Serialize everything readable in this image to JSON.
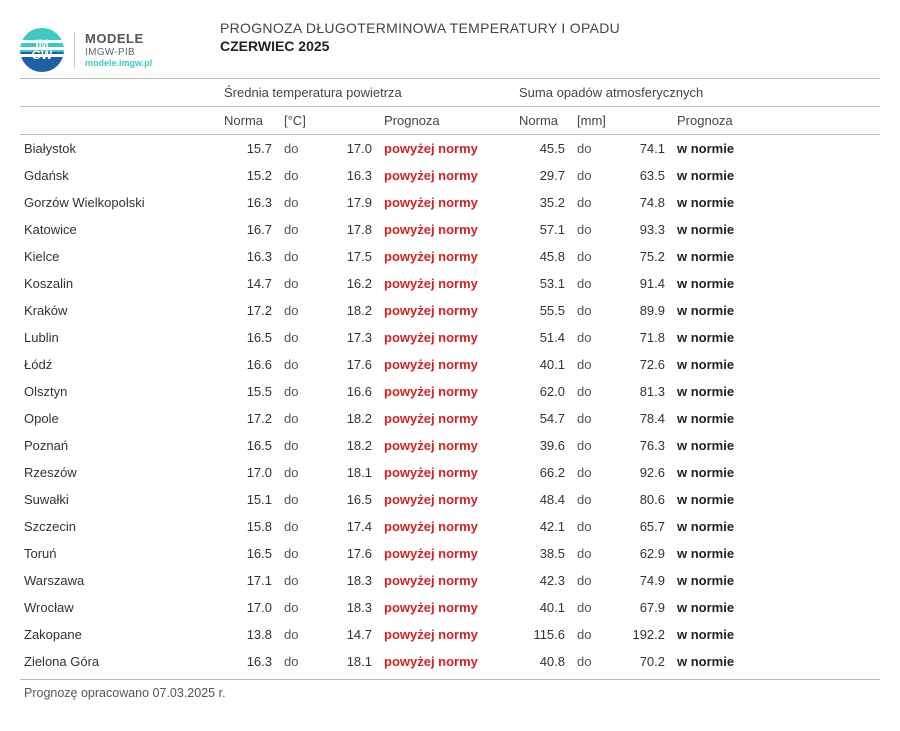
{
  "logo": {
    "top": "IM",
    "bottom": "GW"
  },
  "brand": {
    "line1": "MODELE",
    "line2": "IMGW-PIB",
    "line3": "modele.imgw.pl"
  },
  "title": {
    "line1": "PROGNOZA DŁUGOTERMINOWA TEMPERATURY I OPADU",
    "line2": "CZERWIEC 2025"
  },
  "section_headers": {
    "temp": "Średnia temperatura powietrza",
    "precip": "Suma opadów atmosferycznych"
  },
  "col_headers": {
    "norma": "Norma",
    "temp_unit": "[°C]",
    "precip_unit": "[mm]",
    "prognoza": "Prognoza"
  },
  "range_word": "do",
  "forecast_labels": {
    "above": "powyżej normy",
    "normal": "w normie"
  },
  "colors": {
    "above": "#d22222",
    "normal": "#222222",
    "rule": "#bbbbbb",
    "teal": "#3ec9c4",
    "blue": "#1f5fa5"
  },
  "footer": "Prognozę opracowano 07.03.2025 r.",
  "rows": [
    {
      "city": "Białystok",
      "t_low": "15.7",
      "t_high": "17.0",
      "t_prog": "above",
      "p_low": "45.5",
      "p_high": "74.1",
      "p_prog": "normal"
    },
    {
      "city": "Gdańsk",
      "t_low": "15.2",
      "t_high": "16.3",
      "t_prog": "above",
      "p_low": "29.7",
      "p_high": "63.5",
      "p_prog": "normal"
    },
    {
      "city": "Gorzów Wielkopolski",
      "t_low": "16.3",
      "t_high": "17.9",
      "t_prog": "above",
      "p_low": "35.2",
      "p_high": "74.8",
      "p_prog": "normal"
    },
    {
      "city": "Katowice",
      "t_low": "16.7",
      "t_high": "17.8",
      "t_prog": "above",
      "p_low": "57.1",
      "p_high": "93.3",
      "p_prog": "normal"
    },
    {
      "city": "Kielce",
      "t_low": "16.3",
      "t_high": "17.5",
      "t_prog": "above",
      "p_low": "45.8",
      "p_high": "75.2",
      "p_prog": "normal"
    },
    {
      "city": "Koszalin",
      "t_low": "14.7",
      "t_high": "16.2",
      "t_prog": "above",
      "p_low": "53.1",
      "p_high": "91.4",
      "p_prog": "normal"
    },
    {
      "city": "Kraków",
      "t_low": "17.2",
      "t_high": "18.2",
      "t_prog": "above",
      "p_low": "55.5",
      "p_high": "89.9",
      "p_prog": "normal"
    },
    {
      "city": "Lublin",
      "t_low": "16.5",
      "t_high": "17.3",
      "t_prog": "above",
      "p_low": "51.4",
      "p_high": "71.8",
      "p_prog": "normal"
    },
    {
      "city": "Łódź",
      "t_low": "16.6",
      "t_high": "17.6",
      "t_prog": "above",
      "p_low": "40.1",
      "p_high": "72.6",
      "p_prog": "normal"
    },
    {
      "city": "Olsztyn",
      "t_low": "15.5",
      "t_high": "16.6",
      "t_prog": "above",
      "p_low": "62.0",
      "p_high": "81.3",
      "p_prog": "normal"
    },
    {
      "city": "Opole",
      "t_low": "17.2",
      "t_high": "18.2",
      "t_prog": "above",
      "p_low": "54.7",
      "p_high": "78.4",
      "p_prog": "normal"
    },
    {
      "city": "Poznań",
      "t_low": "16.5",
      "t_high": "18.2",
      "t_prog": "above",
      "p_low": "39.6",
      "p_high": "76.3",
      "p_prog": "normal"
    },
    {
      "city": "Rzeszów",
      "t_low": "17.0",
      "t_high": "18.1",
      "t_prog": "above",
      "p_low": "66.2",
      "p_high": "92.6",
      "p_prog": "normal"
    },
    {
      "city": "Suwałki",
      "t_low": "15.1",
      "t_high": "16.5",
      "t_prog": "above",
      "p_low": "48.4",
      "p_high": "80.6",
      "p_prog": "normal"
    },
    {
      "city": "Szczecin",
      "t_low": "15.8",
      "t_high": "17.4",
      "t_prog": "above",
      "p_low": "42.1",
      "p_high": "65.7",
      "p_prog": "normal"
    },
    {
      "city": "Toruń",
      "t_low": "16.5",
      "t_high": "17.6",
      "t_prog": "above",
      "p_low": "38.5",
      "p_high": "62.9",
      "p_prog": "normal"
    },
    {
      "city": "Warszawa",
      "t_low": "17.1",
      "t_high": "18.3",
      "t_prog": "above",
      "p_low": "42.3",
      "p_high": "74.9",
      "p_prog": "normal"
    },
    {
      "city": "Wrocław",
      "t_low": "17.0",
      "t_high": "18.3",
      "t_prog": "above",
      "p_low": "40.1",
      "p_high": "67.9",
      "p_prog": "normal"
    },
    {
      "city": "Zakopane",
      "t_low": "13.8",
      "t_high": "14.7",
      "t_prog": "above",
      "p_low": "115.6",
      "p_high": "192.2",
      "p_prog": "normal"
    },
    {
      "city": "Zielona Góra",
      "t_low": "16.3",
      "t_high": "18.1",
      "t_prog": "above",
      "p_low": "40.8",
      "p_high": "70.2",
      "p_prog": "normal"
    }
  ]
}
